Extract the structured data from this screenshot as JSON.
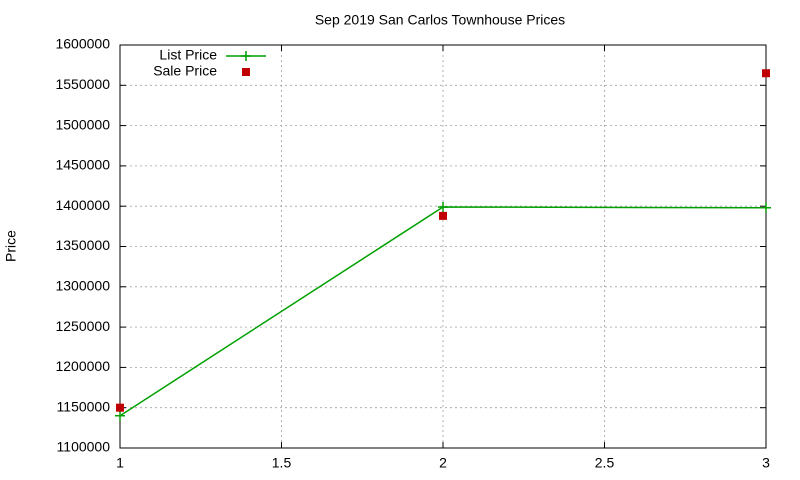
{
  "chart_data": {
    "type": "line",
    "title": "Sep 2019 San Carlos Townhouse Prices",
    "y_label": "Price",
    "x": [
      1,
      2,
      3
    ],
    "series": [
      {
        "name": "List Price",
        "color": "#00a000",
        "marker": "plus",
        "line": true,
        "values": [
          1140000,
          1399000,
          1398000
        ]
      },
      {
        "name": "Sale Price",
        "color": "#c00000",
        "marker": "square",
        "line": false,
        "values": [
          1150000,
          1388000,
          1565000
        ]
      }
    ],
    "xlim": [
      1,
      3
    ],
    "xticks": [
      1,
      1.5,
      2,
      2.5,
      3
    ],
    "ylim": [
      1100000,
      1600000
    ],
    "yticks": [
      1100000,
      1150000,
      1200000,
      1250000,
      1300000,
      1350000,
      1400000,
      1450000,
      1500000,
      1550000,
      1600000
    ],
    "grid": true,
    "legend": "top-left"
  }
}
